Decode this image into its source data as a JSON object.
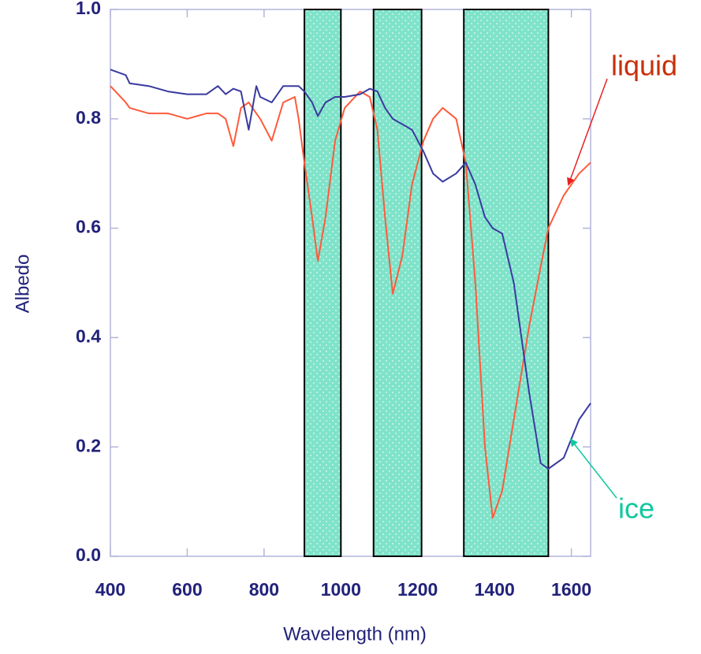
{
  "chart_data": {
    "type": "line",
    "x_label": "Wavelength (nm)",
    "y_label": "Albedo",
    "xlim": [
      400,
      1650
    ],
    "ylim": [
      0,
      1.0
    ],
    "xticks": [
      400,
      600,
      800,
      1000,
      1200,
      1400,
      1600
    ],
    "yticks": [
      {
        "value": 0,
        "label": "0.0"
      },
      0.2,
      0.4,
      0.6,
      0.8,
      {
        "value": 1.0,
        "label": "1.0"
      }
    ],
    "bands": [
      [
        905,
        1000
      ],
      [
        1085,
        1210
      ],
      [
        1320,
        1540
      ]
    ],
    "band_color": "#7fe3c9",
    "x": [
      400,
      440,
      450,
      500,
      550,
      600,
      650,
      680,
      700,
      720,
      740,
      760,
      780,
      790,
      820,
      850,
      880,
      890,
      905,
      925,
      940,
      960,
      985,
      1010,
      1050,
      1075,
      1095,
      1115,
      1135,
      1160,
      1185,
      1215,
      1240,
      1265,
      1300,
      1325,
      1350,
      1375,
      1395,
      1420,
      1450,
      1490,
      1520,
      1540,
      1580,
      1620,
      1650
    ],
    "series": [
      {
        "color": "#ff5a3c",
        "values": [
          0.86,
          0.83,
          0.82,
          0.81,
          0.81,
          0.8,
          0.81,
          0.81,
          0.8,
          0.75,
          0.82,
          0.83,
          0.81,
          0.8,
          0.76,
          0.83,
          0.84,
          0.8,
          0.72,
          0.62,
          0.54,
          0.62,
          0.76,
          0.82,
          0.85,
          0.84,
          0.78,
          0.62,
          0.48,
          0.55,
          0.68,
          0.76,
          0.8,
          0.82,
          0.8,
          0.72,
          0.5,
          0.2,
          0.07,
          0.12,
          0.25,
          0.42,
          0.53,
          0.6,
          0.66,
          0.7,
          0.72
        ]
      },
      {
        "color": "#3a3aa0",
        "values": [
          0.89,
          0.88,
          0.865,
          0.86,
          0.85,
          0.845,
          0.845,
          0.86,
          0.845,
          0.855,
          0.85,
          0.78,
          0.86,
          0.84,
          0.83,
          0.86,
          0.86,
          0.86,
          0.85,
          0.83,
          0.805,
          0.83,
          0.84,
          0.84,
          0.845,
          0.855,
          0.85,
          0.82,
          0.8,
          0.79,
          0.78,
          0.74,
          0.7,
          0.685,
          0.7,
          0.72,
          0.68,
          0.62,
          0.6,
          0.59,
          0.5,
          0.3,
          0.17,
          0.16,
          0.18,
          0.25,
          0.28
        ]
      }
    ],
    "annotations": [
      {
        "text": "liquid",
        "color": "#c8300a",
        "arrow_color": "#e82020"
      },
      {
        "text": "ice",
        "color": "#10c8a0",
        "arrow_color": "#10c8a0"
      }
    ]
  }
}
